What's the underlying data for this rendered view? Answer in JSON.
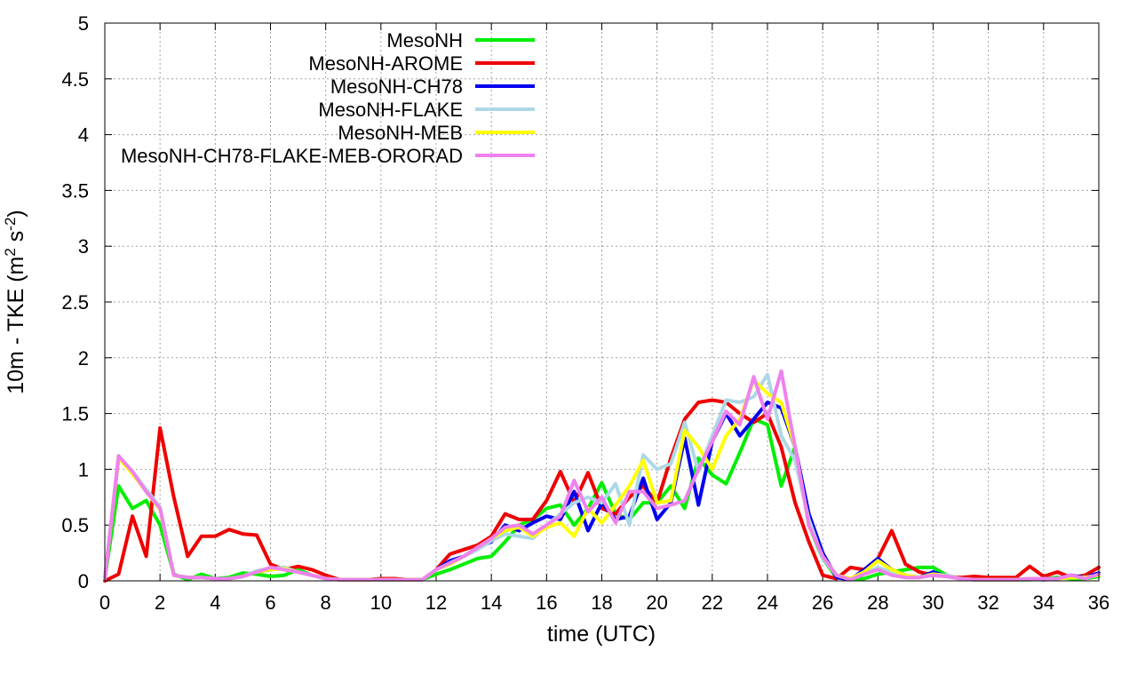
{
  "chart_data": {
    "type": "line",
    "title": "",
    "xlabel": "time (UTC)",
    "ylabel_main": "10m - TKE (m",
    "ylabel_sup1": "2",
    "ylabel_mid": " s",
    "ylabel_sup2": "-2",
    "ylabel_end": ")",
    "xlim": [
      0,
      36
    ],
    "ylim": [
      0,
      5
    ],
    "xticks": [
      0,
      2,
      4,
      6,
      8,
      10,
      12,
      14,
      16,
      18,
      20,
      22,
      24,
      26,
      28,
      30,
      32,
      34,
      36
    ],
    "yticks": [
      0,
      0.5,
      1,
      1.5,
      2,
      2.5,
      3,
      3.5,
      4,
      4.5,
      5
    ],
    "ytick_labels": [
      "0",
      "0.5",
      "1",
      "1.5",
      "2",
      "2.5",
      "3",
      "3.5",
      "4",
      "4.5",
      "5"
    ],
    "grid": true,
    "legend_position": "top-left",
    "series": [
      {
        "name": "MesoNH",
        "color": "#00ee00",
        "x": [
          0,
          0.5,
          1,
          1.5,
          2,
          2.5,
          3,
          3.5,
          4,
          4.5,
          5,
          5.5,
          6,
          6.5,
          7,
          7.5,
          8,
          8.5,
          9,
          9.5,
          10,
          10.5,
          11,
          11.5,
          12,
          12.5,
          13,
          13.5,
          14,
          14.5,
          15,
          15.5,
          16,
          16.5,
          17,
          17.5,
          18,
          18.5,
          19,
          19.5,
          20,
          20.5,
          21,
          21.5,
          22,
          22.5,
          23,
          23.5,
          24,
          24.5,
          25,
          25.5,
          26,
          26.5,
          27,
          27.5,
          28,
          28.5,
          29,
          29.5,
          30,
          30.5,
          31,
          31.5,
          32,
          32.5,
          33,
          33.5,
          34,
          34.5,
          35,
          35.5,
          36
        ],
        "values": [
          0.02,
          0.85,
          0.65,
          0.72,
          0.5,
          0.06,
          0.01,
          0.06,
          0.02,
          0.03,
          0.07,
          0.06,
          0.04,
          0.05,
          0.1,
          0.05,
          0.02,
          0.01,
          0.01,
          0.01,
          0.01,
          0.01,
          0.01,
          0.01,
          0.06,
          0.1,
          0.15,
          0.2,
          0.22,
          0.35,
          0.5,
          0.55,
          0.65,
          0.68,
          0.5,
          0.65,
          0.88,
          0.6,
          0.55,
          0.7,
          0.7,
          0.85,
          0.65,
          1.1,
          0.95,
          0.87,
          1.15,
          1.45,
          1.4,
          0.85,
          1.2,
          0.5,
          0.2,
          0.03,
          0.02,
          0.02,
          0.06,
          0.08,
          0.1,
          0.12,
          0.12,
          0.05,
          0.02,
          0.01,
          0.01,
          0.01,
          0.01,
          0.01,
          0.02,
          0.03,
          0.02,
          0.02,
          0.04
        ]
      },
      {
        "name": "MesoNH-AROME",
        "color": "#ee0000",
        "x": [
          0,
          0.5,
          1,
          1.5,
          2,
          2.5,
          3,
          3.5,
          4,
          4.5,
          5,
          5.5,
          6,
          6.5,
          7,
          7.5,
          8,
          8.5,
          9,
          9.5,
          10,
          10.5,
          11,
          11.5,
          12,
          12.5,
          13,
          13.5,
          14,
          14.5,
          15,
          15.5,
          16,
          16.5,
          17,
          17.5,
          18,
          18.5,
          19,
          19.5,
          20,
          20.5,
          21,
          21.5,
          22,
          22.5,
          23,
          23.5,
          24,
          24.5,
          25,
          25.5,
          26,
          26.5,
          27,
          27.5,
          28,
          28.5,
          29,
          29.5,
          30,
          30.5,
          31,
          31.5,
          32,
          32.5,
          33,
          33.5,
          34,
          34.5,
          35,
          35.5,
          36
        ],
        "values": [
          0.0,
          0.06,
          0.58,
          0.22,
          1.37,
          0.75,
          0.22,
          0.4,
          0.4,
          0.46,
          0.42,
          0.41,
          0.15,
          0.1,
          0.13,
          0.1,
          0.05,
          0.01,
          0.01,
          0.01,
          0.02,
          0.02,
          0.01,
          0.01,
          0.1,
          0.24,
          0.28,
          0.32,
          0.4,
          0.6,
          0.55,
          0.55,
          0.72,
          0.98,
          0.7,
          0.97,
          0.65,
          0.6,
          0.75,
          0.85,
          0.7,
          1.1,
          1.45,
          1.6,
          1.62,
          1.6,
          1.5,
          1.42,
          1.5,
          1.2,
          0.7,
          0.35,
          0.05,
          0.02,
          0.12,
          0.1,
          0.2,
          0.45,
          0.15,
          0.08,
          0.05,
          0.04,
          0.03,
          0.04,
          0.03,
          0.03,
          0.03,
          0.13,
          0.04,
          0.08,
          0.03,
          0.05,
          0.12
        ]
      },
      {
        "name": "MesoNH-CH78",
        "color": "#0000ee",
        "x": [
          0,
          0.5,
          1,
          1.5,
          2,
          2.5,
          3,
          3.5,
          4,
          4.5,
          5,
          5.5,
          6,
          6.5,
          7,
          7.5,
          8,
          8.5,
          9,
          9.5,
          10,
          10.5,
          11,
          11.5,
          12,
          12.5,
          13,
          13.5,
          14,
          14.5,
          15,
          15.5,
          16,
          16.5,
          17,
          17.5,
          18,
          18.5,
          19,
          19.5,
          20,
          20.5,
          21,
          21.5,
          22,
          22.5,
          23,
          23.5,
          24,
          24.5,
          25,
          25.5,
          26,
          26.5,
          27,
          27.5,
          28,
          28.5,
          29,
          29.5,
          30,
          30.5,
          31,
          31.5,
          32,
          32.5,
          33,
          33.5,
          34,
          34.5,
          35,
          35.5,
          36
        ],
        "values": [
          0.02,
          1.1,
          0.97,
          0.8,
          0.65,
          0.05,
          0.03,
          0.03,
          0.02,
          0.02,
          0.04,
          0.08,
          0.1,
          0.12,
          0.08,
          0.05,
          0.02,
          0.01,
          0.01,
          0.01,
          0.01,
          0.01,
          0.01,
          0.01,
          0.1,
          0.18,
          0.22,
          0.3,
          0.35,
          0.5,
          0.45,
          0.52,
          0.58,
          0.55,
          0.8,
          0.45,
          0.7,
          0.55,
          0.58,
          0.92,
          0.55,
          0.7,
          1.28,
          0.68,
          1.25,
          1.5,
          1.3,
          1.45,
          1.6,
          1.55,
          1.2,
          0.6,
          0.25,
          0.03,
          0.01,
          0.1,
          0.2,
          0.1,
          0.05,
          0.03,
          0.08,
          0.04,
          0.02,
          0.01,
          0.01,
          0.01,
          0.01,
          0.02,
          0.01,
          0.02,
          0.05,
          0.03,
          0.07
        ]
      },
      {
        "name": "MesoNH-FLAKE",
        "color": "#add8e6",
        "x": [
          0,
          0.5,
          1,
          1.5,
          2,
          2.5,
          3,
          3.5,
          4,
          4.5,
          5,
          5.5,
          6,
          6.5,
          7,
          7.5,
          8,
          8.5,
          9,
          9.5,
          10,
          10.5,
          11,
          11.5,
          12,
          12.5,
          13,
          13.5,
          14,
          14.5,
          15,
          15.5,
          16,
          16.5,
          17,
          17.5,
          18,
          18.5,
          19,
          19.5,
          20,
          20.5,
          21,
          21.5,
          22,
          22.5,
          23,
          23.5,
          24,
          24.5,
          25,
          25.5,
          26,
          26.5,
          27,
          27.5,
          28,
          28.5,
          29,
          29.5,
          30,
          30.5,
          31,
          31.5,
          32,
          32.5,
          33,
          33.5,
          34,
          34.5,
          35,
          35.5,
          36
        ],
        "values": [
          0.02,
          1.12,
          0.98,
          0.82,
          0.66,
          0.05,
          0.03,
          0.03,
          0.02,
          0.02,
          0.04,
          0.09,
          0.11,
          0.12,
          0.08,
          0.05,
          0.02,
          0.01,
          0.01,
          0.01,
          0.01,
          0.01,
          0.01,
          0.01,
          0.1,
          0.16,
          0.22,
          0.28,
          0.36,
          0.42,
          0.4,
          0.38,
          0.5,
          0.6,
          0.7,
          0.75,
          0.7,
          0.87,
          0.5,
          1.13,
          1.0,
          1.05,
          1.42,
          0.98,
          1.3,
          1.62,
          1.6,
          1.65,
          1.85,
          1.3,
          1.08,
          0.55,
          0.2,
          0.05,
          0.02,
          0.06,
          0.12,
          0.08,
          0.05,
          0.03,
          0.06,
          0.05,
          0.02,
          0.01,
          0.01,
          0.01,
          0.01,
          0.02,
          0.02,
          0.02,
          0.03,
          0.03,
          0.05
        ]
      },
      {
        "name": "MesoNH-MEB",
        "color": "#ffff00",
        "x": [
          0,
          0.5,
          1,
          1.5,
          2,
          2.5,
          3,
          3.5,
          4,
          4.5,
          5,
          5.5,
          6,
          6.5,
          7,
          7.5,
          8,
          8.5,
          9,
          9.5,
          10,
          10.5,
          11,
          11.5,
          12,
          12.5,
          13,
          13.5,
          14,
          14.5,
          15,
          15.5,
          16,
          16.5,
          17,
          17.5,
          18,
          18.5,
          19,
          19.5,
          20,
          20.5,
          21,
          21.5,
          22,
          22.5,
          23,
          23.5,
          24,
          24.5,
          25,
          25.5,
          26,
          26.5,
          27,
          27.5,
          28,
          28.5,
          29,
          29.5,
          30,
          30.5,
          31,
          31.5,
          32,
          32.5,
          33,
          33.5,
          34,
          34.5,
          35,
          35.5,
          36
        ],
        "values": [
          0.02,
          1.1,
          0.96,
          0.8,
          0.64,
          0.05,
          0.03,
          0.03,
          0.02,
          0.02,
          0.04,
          0.08,
          0.1,
          0.11,
          0.08,
          0.05,
          0.02,
          0.01,
          0.01,
          0.01,
          0.01,
          0.01,
          0.01,
          0.01,
          0.1,
          0.15,
          0.22,
          0.3,
          0.38,
          0.45,
          0.48,
          0.4,
          0.48,
          0.52,
          0.4,
          0.65,
          0.52,
          0.68,
          0.85,
          1.08,
          0.7,
          0.72,
          1.35,
          1.2,
          1.0,
          1.3,
          1.45,
          1.8,
          1.68,
          1.6,
          1.2,
          0.5,
          0.22,
          0.05,
          0.02,
          0.08,
          0.18,
          0.1,
          0.05,
          0.03,
          0.06,
          0.04,
          0.02,
          0.01,
          0.01,
          0.01,
          0.01,
          0.02,
          0.02,
          0.02,
          0.03,
          0.03,
          0.05
        ]
      },
      {
        "name": "MesoNH-CH78-FLAKE-MEB-ORORAD",
        "color": "#ee82ee",
        "x": [
          0,
          0.5,
          1,
          1.5,
          2,
          2.5,
          3,
          3.5,
          4,
          4.5,
          5,
          5.5,
          6,
          6.5,
          7,
          7.5,
          8,
          8.5,
          9,
          9.5,
          10,
          10.5,
          11,
          11.5,
          12,
          12.5,
          13,
          13.5,
          14,
          14.5,
          15,
          15.5,
          16,
          16.5,
          17,
          17.5,
          18,
          18.5,
          19,
          19.5,
          20,
          20.5,
          21,
          21.5,
          22,
          22.5,
          23,
          23.5,
          24,
          24.5,
          25,
          25.5,
          26,
          26.5,
          27,
          27.5,
          28,
          28.5,
          29,
          29.5,
          30,
          30.5,
          31,
          31.5,
          32,
          32.5,
          33,
          33.5,
          34,
          34.5,
          35,
          35.5,
          36
        ],
        "values": [
          0.02,
          1.12,
          0.98,
          0.8,
          0.65,
          0.05,
          0.03,
          0.03,
          0.02,
          0.02,
          0.04,
          0.08,
          0.12,
          0.1,
          0.08,
          0.05,
          0.02,
          0.01,
          0.01,
          0.01,
          0.01,
          0.01,
          0.01,
          0.01,
          0.1,
          0.16,
          0.22,
          0.3,
          0.38,
          0.48,
          0.5,
          0.42,
          0.5,
          0.58,
          0.9,
          0.62,
          0.75,
          0.52,
          0.8,
          0.8,
          0.65,
          0.68,
          0.72,
          1.0,
          1.25,
          1.52,
          1.4,
          1.83,
          1.45,
          1.88,
          1.2,
          0.5,
          0.22,
          0.05,
          0.01,
          0.06,
          0.1,
          0.05,
          0.03,
          0.03,
          0.05,
          0.04,
          0.02,
          0.01,
          0.01,
          0.01,
          0.01,
          0.02,
          0.02,
          0.02,
          0.05,
          0.02,
          0.06
        ]
      }
    ]
  }
}
